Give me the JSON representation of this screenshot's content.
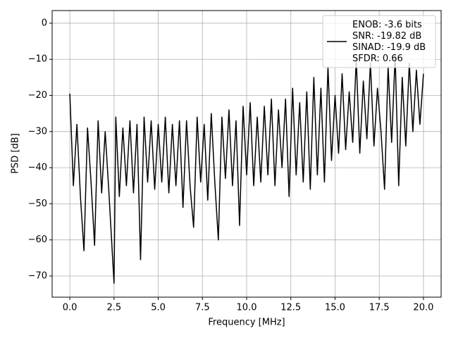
{
  "chart_data": {
    "type": "line",
    "xlabel": "Frequency [MHz]",
    "ylabel": "PSD [dB]",
    "x": [
      0,
      0.2,
      0.4,
      0.6,
      0.8,
      1.0,
      1.2,
      1.4,
      1.6,
      1.8,
      2.0,
      2.2,
      2.5,
      2.6,
      2.8,
      3.0,
      3.2,
      3.4,
      3.6,
      3.8,
      4.0,
      4.2,
      4.4,
      4.6,
      4.8,
      5.0,
      5.2,
      5.4,
      5.6,
      5.8,
      6.0,
      6.2,
      6.4,
      6.6,
      6.8,
      7.0,
      7.2,
      7.4,
      7.6,
      7.8,
      8.0,
      8.2,
      8.4,
      8.6,
      8.8,
      9.0,
      9.2,
      9.4,
      9.6,
      9.8,
      10.0,
      10.2,
      10.4,
      10.6,
      10.8,
      11.0,
      11.2,
      11.4,
      11.6,
      11.8,
      12.0,
      12.2,
      12.4,
      12.6,
      12.8,
      13.0,
      13.2,
      13.4,
      13.6,
      13.8,
      14.0,
      14.2,
      14.4,
      14.6,
      14.8,
      15.0,
      15.2,
      15.4,
      15.6,
      15.8,
      16.0,
      16.2,
      16.4,
      16.6,
      16.8,
      17.0,
      17.2,
      17.4,
      17.6,
      17.8,
      18.0,
      18.2,
      18.4,
      18.6,
      18.8,
      19.0,
      19.2,
      19.4,
      19.6,
      19.8,
      20.0
    ],
    "series": [
      {
        "name": "ENOB: -3.6 bits\nSNR: -19.82 dB\nSINAD: -19.9 dB\nSFDR: 0.66",
        "color": "#000000",
        "values": [
          -19.5,
          -45,
          -28,
          -48,
          -63,
          -29,
          -44,
          -61.5,
          -27,
          -47,
          -30,
          -46,
          -72,
          -26,
          -48,
          -29,
          -45,
          -27,
          -47,
          -28,
          -65.5,
          -26,
          -44,
          -27,
          -46,
          -28,
          -44,
          -26,
          -47,
          -28,
          -45,
          -27,
          -51,
          -27,
          -45,
          -56.5,
          -26,
          -44,
          -28,
          -49,
          -25,
          -44,
          -60,
          -26,
          -43,
          -24,
          -45,
          -27,
          -56,
          -23,
          -42,
          -22,
          -45,
          -26,
          -44,
          -23,
          -42,
          -21,
          -45,
          -24,
          -40,
          -21,
          -48,
          -18,
          -42,
          -22,
          -44,
          -19,
          -46,
          -15,
          -42,
          -18,
          -44,
          -12,
          -38,
          -20,
          -36,
          -14,
          -35,
          -19,
          -33,
          -10,
          -36,
          -16,
          -32,
          -11,
          -34,
          -18,
          -30,
          -46,
          -12,
          -33,
          -9,
          -45,
          -15,
          -34,
          -11,
          -30,
          -13,
          -28,
          -14
        ]
      }
    ],
    "xlim": [
      -1,
      21
    ],
    "ylim": [
      -75.85,
      3.5
    ],
    "xticks": [
      {
        "value": 0,
        "label": "0.0"
      },
      2.5,
      {
        "value": 5,
        "label": "5.0"
      },
      7.5,
      {
        "value": 10,
        "label": "10.0"
      },
      12.5,
      {
        "value": 15,
        "label": "15.0"
      },
      17.5,
      {
        "value": 20,
        "label": "20.0"
      }
    ],
    "yticks": [
      {
        "value": -70,
        "label": "−70"
      },
      {
        "value": -60,
        "label": "−60"
      },
      {
        "value": -50,
        "label": "−50"
      },
      {
        "value": -40,
        "label": "−40"
      },
      {
        "value": -30,
        "label": "−30"
      },
      {
        "value": -20,
        "label": "−20"
      },
      {
        "value": -10,
        "label": "−10"
      },
      0
    ],
    "grid": true,
    "legend": "upper right"
  }
}
